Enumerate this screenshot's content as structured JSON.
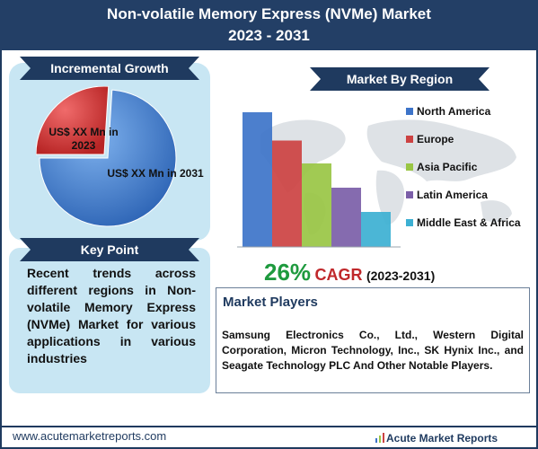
{
  "header": {
    "title_line1": "Non-volatile Memory Express (NVMe) Market",
    "title_line2": "2023 - 2031"
  },
  "incremental_growth": {
    "heading": "Incremental Growth",
    "label_2023": "US$ XX Mn in 2023",
    "label_2031": "US$ XX Mn in 2031"
  },
  "key_point": {
    "heading": "Key Point",
    "text": "Recent trends across different regions in Non-volatile Memory Express (NVMe) Market for various applications in various industries"
  },
  "region": {
    "heading": "Market By Region"
  },
  "cagr": {
    "value": "26%",
    "label": "CAGR",
    "years": "(2023-2031)"
  },
  "players": {
    "title": "Market Players",
    "text": "Samsung Electronics Co., Ltd., Western Digital Corporation, Micron Technology, Inc., SK Hynix Inc., and Seagate Technology PLC And Other Notable Players."
  },
  "footer": {
    "url": "www.acutemarketreports.com",
    "brand": "Acute Market Reports"
  },
  "colors": {
    "header": "#233f66",
    "pie_2023": "#d93a3a",
    "pie_2031": "#3c7fd1",
    "cagr_value": "#1e9a3e",
    "cagr_label": "#c0282b"
  },
  "chart_data": [
    {
      "type": "pie",
      "slices": [
        {
          "label": "US$ XX Mn in 2023",
          "value": 26
        },
        {
          "label": "US$ XX Mn in 2031",
          "value": 74
        }
      ]
    },
    {
      "type": "bar",
      "categories": [
        "North America",
        "Europe",
        "Asia Pacific",
        "Latin America",
        "Middle East & Africa"
      ],
      "values": [
        100,
        79,
        62,
        44,
        26
      ],
      "colors": [
        "#3d74c9",
        "#cc4242",
        "#99c644",
        "#7b5ea8",
        "#3cb0d3"
      ],
      "ylim": [
        0,
        100
      ],
      "legend": "right"
    }
  ]
}
